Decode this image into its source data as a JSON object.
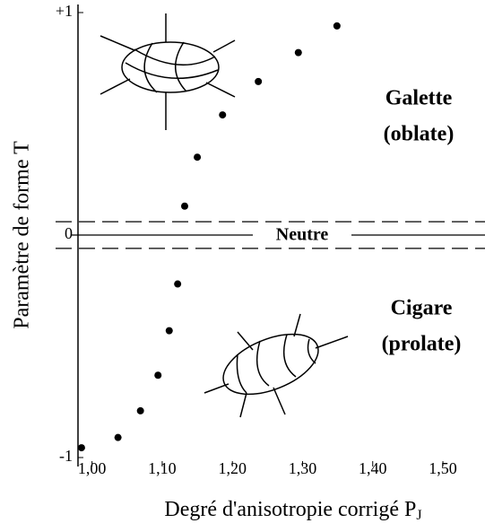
{
  "chart_data": {
    "type": "scatter",
    "y_label": "Paramètre de forme T",
    "x_label": "Degré d'anisotropie corrigé P",
    "x_label_subscript": "J",
    "annotations": [
      "Galette",
      "(oblate)",
      "Cigare",
      "(prolate)",
      "Neutre"
    ],
    "color": "#000000",
    "x": [
      0.985,
      1.037,
      1.069,
      1.094,
      1.11,
      1.122,
      1.132,
      1.15,
      1.186,
      1.237,
      1.294,
      1.349
    ],
    "values": [
      -0.956,
      -0.91,
      -0.79,
      -0.63,
      -0.43,
      -0.22,
      0.13,
      0.35,
      0.54,
      0.69,
      0.82,
      0.94
    ],
    "neutral_band": [
      -0.06,
      0.06
    ],
    "xlim": [
      0.98,
      1.56
    ],
    "ylim": [
      -1,
      1
    ],
    "xticks": [
      {
        "value": 1.0,
        "label": "1,00"
      },
      {
        "value": 1.1,
        "label": "1,10"
      },
      {
        "value": 1.2,
        "label": "1,20"
      },
      {
        "value": 1.3,
        "label": "1,30"
      },
      {
        "value": 1.4,
        "label": "1,40"
      },
      {
        "value": 1.5,
        "label": "1,50"
      }
    ],
    "yticks": [
      -1,
      0,
      {
        "value": 1,
        "label": "+1"
      }
    ]
  }
}
